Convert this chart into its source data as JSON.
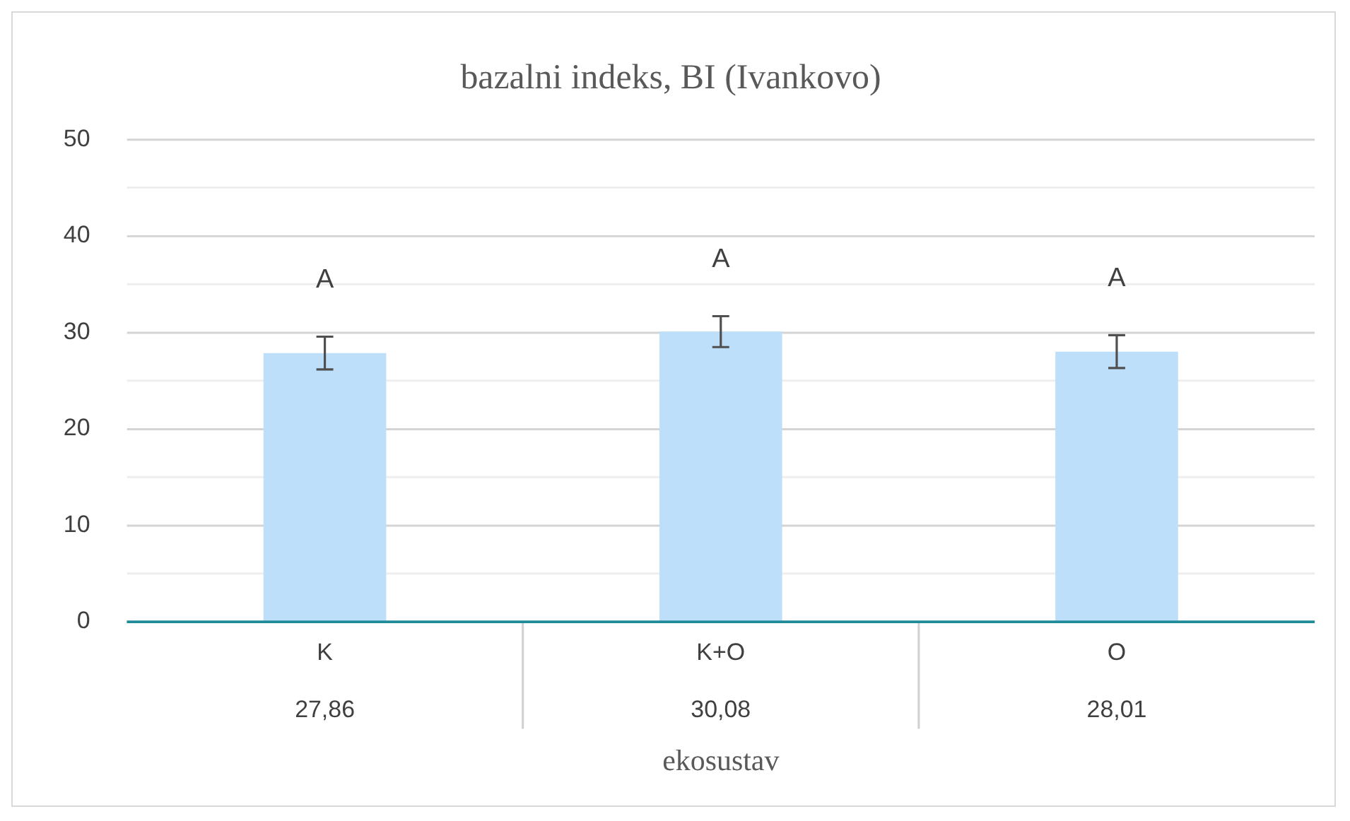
{
  "chart_data": {
    "type": "bar",
    "title": "bazalni indeks, BI (Ivankovo)",
    "xlabel": "ekosustav",
    "categories": [
      "K",
      "K+O",
      "O"
    ],
    "values": [
      27.86,
      30.08,
      28.01
    ],
    "value_labels": [
      "27,86",
      "30,08",
      "28,01"
    ],
    "errors": [
      1.7,
      1.6,
      1.7
    ],
    "color": "#bddff9",
    "ylim": [
      0,
      50
    ],
    "yticks": [
      0,
      {
        "value": 5,
        "label": null
      },
      10,
      {
        "value": 15,
        "label": null
      },
      20,
      {
        "value": 25,
        "label": null
      },
      30,
      {
        "value": 35,
        "label": null
      },
      40,
      {
        "value": 45,
        "label": null
      },
      50
    ],
    "grid": "y",
    "annotations": [
      "A",
      "A",
      "A"
    ]
  }
}
